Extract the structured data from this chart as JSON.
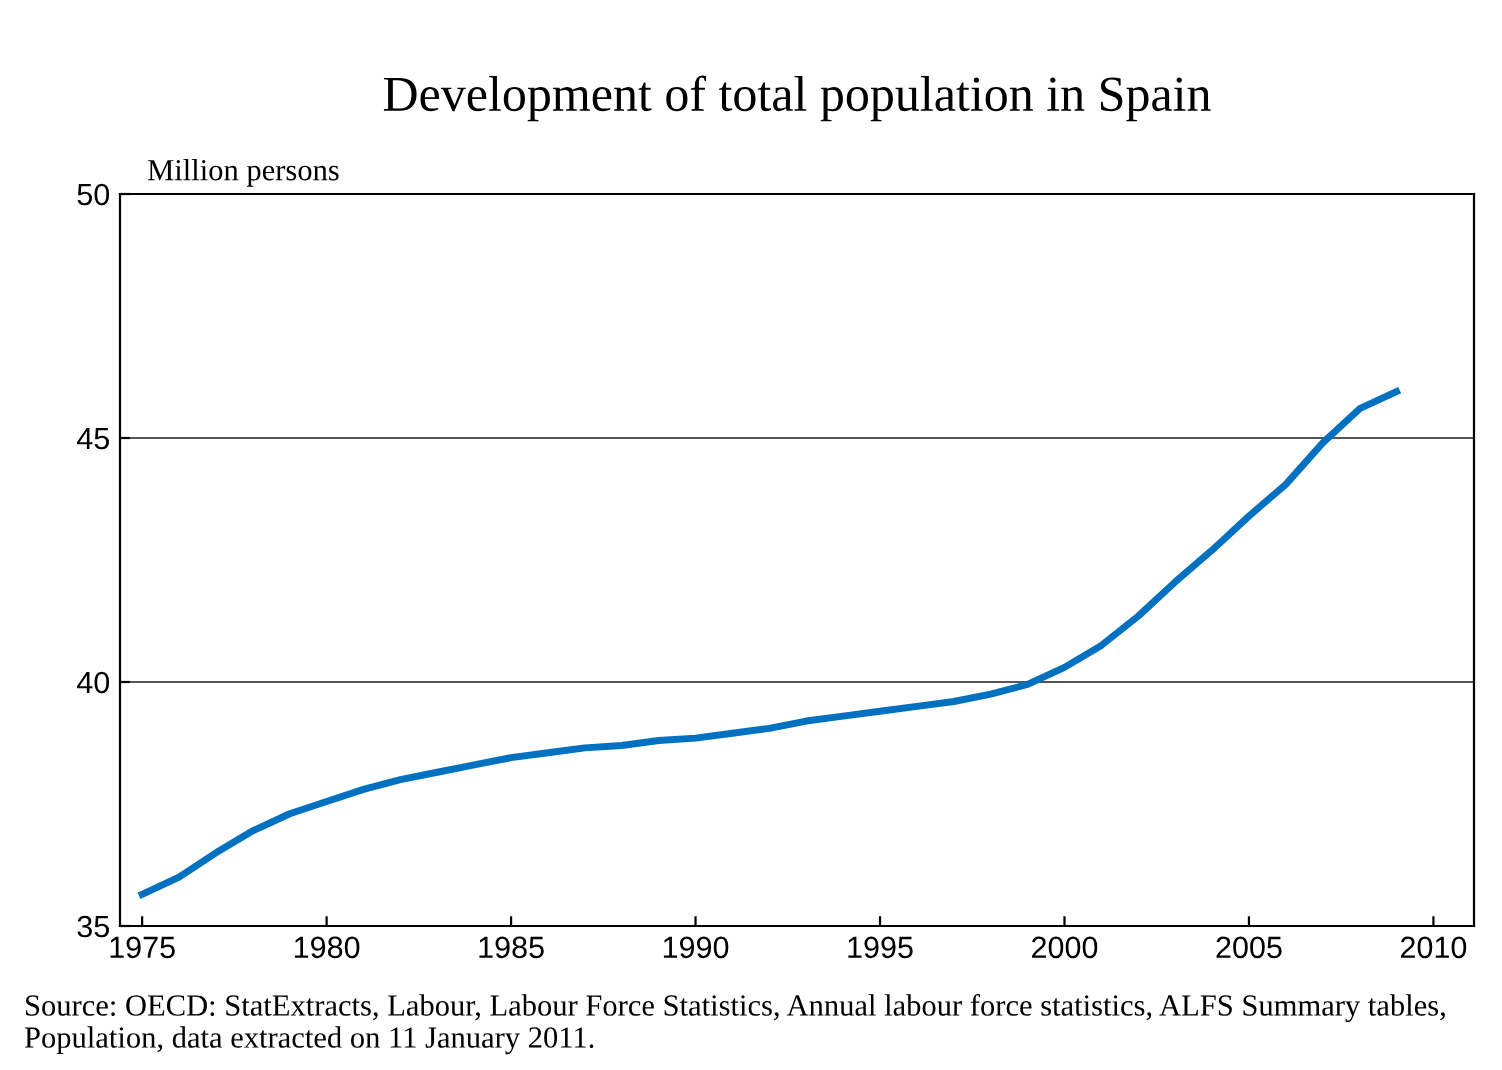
{
  "chart_data": {
    "type": "line",
    "title": "Development of total population in Spain",
    "ylabel": "Million persons",
    "x": [
      1975,
      1976,
      1977,
      1978,
      1979,
      1980,
      1981,
      1982,
      1983,
      1984,
      1985,
      1986,
      1987,
      1988,
      1989,
      1990,
      1991,
      1992,
      1993,
      1994,
      1995,
      1996,
      1997,
      1998,
      1999,
      2000,
      2001,
      2002,
      2003,
      2004,
      2005,
      2006,
      2007,
      2008,
      2009
    ],
    "series": [
      {
        "color": "#0070c0",
        "values": [
          35.65,
          36.0,
          36.5,
          36.95,
          37.3,
          37.55,
          37.8,
          38.0,
          38.15,
          38.3,
          38.45,
          38.55,
          38.65,
          38.7,
          38.8,
          38.85,
          38.95,
          39.05,
          39.2,
          39.3,
          39.4,
          39.5,
          39.6,
          39.75,
          39.95,
          40.3,
          40.75,
          41.35,
          42.05,
          42.7,
          43.4,
          44.05,
          44.9,
          45.6,
          45.95
        ]
      }
    ],
    "xlim": [
      1974.4,
      2011.1
    ],
    "xticks": [
      1975,
      1980,
      1985,
      1990,
      1995,
      2000,
      2005,
      2010
    ],
    "ylim": [
      35,
      50
    ],
    "yticks": [
      35,
      40,
      45,
      50
    ],
    "grid": "y",
    "legend": false,
    "marker": "none",
    "line_style": "solid",
    "annotations": [
      "Source: OECD: StatExtracts, Labour, Labour Force Statistics, Annual labour force statistics, ALFS Summary tables, Population, data extracted on 11 January 2011."
    ]
  }
}
